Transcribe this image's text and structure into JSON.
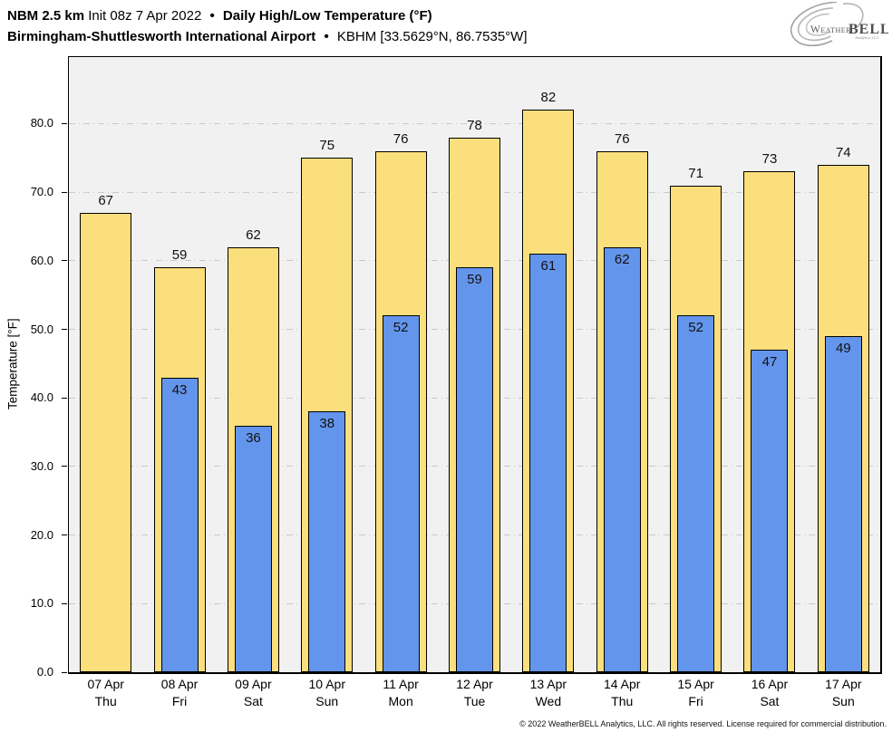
{
  "header": {
    "model": "NBM 2.5 km",
    "init": "Init 08z 7 Apr 2022",
    "separator": "•",
    "product": "Daily High/Low Temperature (°F)",
    "station": "Birmingham-Shuttlesworth International Airport",
    "station_id": "KBHM [33.5629°N, 86.7535°W]"
  },
  "logo": {
    "word1": "Weather",
    "word2": "BELL",
    "tagline": "Analytics LLC"
  },
  "chart_data": {
    "type": "bar",
    "title": "NBM 2.5 km Init 08z 7 Apr 2022 • Daily High/Low Temperature (°F)",
    "subtitle": "Birmingham-Shuttlesworth International Airport • KBHM [33.5629°N, 86.7535°W]",
    "ylabel": "Temperature [°F]",
    "ylim": [
      0,
      89.7
    ],
    "yticks": [
      {
        "value": 0,
        "label": "0.0"
      },
      {
        "value": 10,
        "label": "10.0"
      },
      {
        "value": 20,
        "label": "20.0"
      },
      {
        "value": 30,
        "label": "30.0"
      },
      {
        "value": 40,
        "label": "40.0"
      },
      {
        "value": 50,
        "label": "50.0"
      },
      {
        "value": 60,
        "label": "60.0"
      },
      {
        "value": 70,
        "label": "70.0"
      },
      {
        "value": 80,
        "label": "80.0"
      }
    ],
    "grid": "horizontal dash-dot",
    "legend_position": "none",
    "categories": [
      {
        "date": "07 Apr",
        "day": "Thu"
      },
      {
        "date": "08 Apr",
        "day": "Fri"
      },
      {
        "date": "09 Apr",
        "day": "Sat"
      },
      {
        "date": "10 Apr",
        "day": "Sun"
      },
      {
        "date": "11 Apr",
        "day": "Mon"
      },
      {
        "date": "12 Apr",
        "day": "Tue"
      },
      {
        "date": "13 Apr",
        "day": "Wed"
      },
      {
        "date": "14 Apr",
        "day": "Thu"
      },
      {
        "date": "15 Apr",
        "day": "Fri"
      },
      {
        "date": "16 Apr",
        "day": "Sat"
      },
      {
        "date": "17 Apr",
        "day": "Sun"
      }
    ],
    "series": [
      {
        "name": "Daily High",
        "color": "#FCDF7D",
        "values": [
          67,
          59,
          62,
          75,
          76,
          78,
          82,
          76,
          71,
          73,
          74
        ]
      },
      {
        "name": "Daily Low",
        "color": "#6495EC",
        "values": [
          null,
          43,
          36,
          38,
          52,
          59,
          61,
          62,
          52,
          47,
          49
        ]
      }
    ],
    "colors": {
      "plot_background": "#F1F1F1",
      "grid_line": "#C9C9C9",
      "bar_outline": "#000000"
    }
  },
  "footer": {
    "copyright": "© 2022 WeatherBELL Analytics, LLC. All rights reserved. License required for commercial distribution."
  }
}
